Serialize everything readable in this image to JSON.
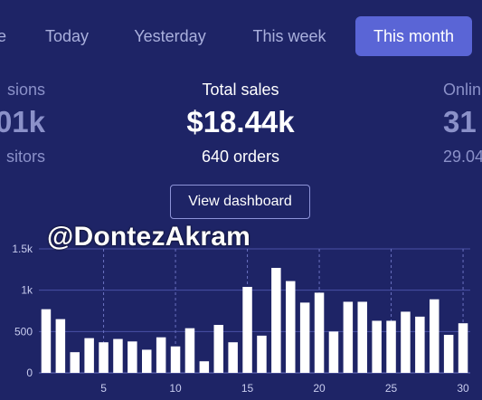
{
  "tabs": [
    {
      "label": "e"
    },
    {
      "label": "Today"
    },
    {
      "label": "Yesterday"
    },
    {
      "label": "This week"
    },
    {
      "label": "This month",
      "active": true
    }
  ],
  "stats": {
    "left": {
      "label": "sions",
      "value": "01k",
      "sub": "sitors"
    },
    "center": {
      "label": "Total sales",
      "value": "$18.44k",
      "sub": "640 orders"
    },
    "right": {
      "label": "Onlin",
      "value": "31",
      "sub": "29.04"
    }
  },
  "view_dashboard_label": "View dashboard",
  "watermark": "@DontezAkram",
  "colors": {
    "background": "#1e2466",
    "accent": "#5a65d6",
    "bar": "#ffffff",
    "gridline": "#4a51a6"
  },
  "chart_data": {
    "type": "bar",
    "x": [
      1,
      2,
      3,
      4,
      5,
      6,
      7,
      8,
      9,
      10,
      11,
      12,
      13,
      14,
      15,
      16,
      17,
      18,
      19,
      20,
      21,
      22,
      23,
      24,
      25,
      26,
      27,
      28,
      29,
      30
    ],
    "values": [
      770,
      650,
      250,
      420,
      370,
      410,
      380,
      280,
      430,
      320,
      540,
      140,
      580,
      370,
      1040,
      450,
      1270,
      1110,
      850,
      970,
      500,
      860,
      860,
      630,
      630,
      740,
      680,
      890,
      460,
      600
    ],
    "yticks": [
      "0",
      "500",
      "1k",
      "1.5k"
    ],
    "ytick_values": [
      0,
      500,
      1000,
      1500
    ],
    "xticks": [
      "5",
      "10",
      "15",
      "20",
      "25",
      "30"
    ],
    "xtick_values": [
      5,
      10,
      15,
      20,
      25,
      30
    ],
    "ylim": [
      0,
      1500
    ]
  }
}
